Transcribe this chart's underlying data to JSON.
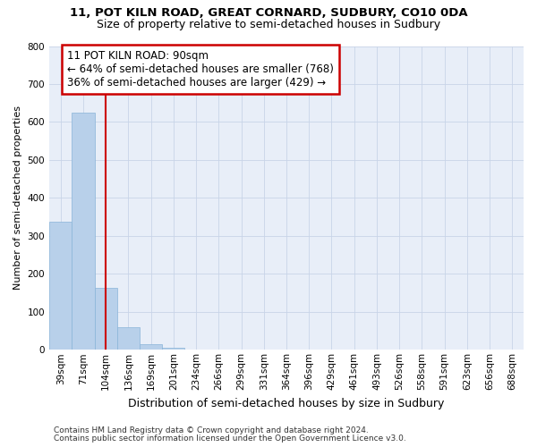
{
  "title": "11, POT KILN ROAD, GREAT CORNARD, SUDBURY, CO10 0DA",
  "subtitle": "Size of property relative to semi-detached houses in Sudbury",
  "xlabel": "Distribution of semi-detached houses by size in Sudbury",
  "ylabel": "Number of semi-detached properties",
  "categories": [
    "39sqm",
    "71sqm",
    "104sqm",
    "136sqm",
    "169sqm",
    "201sqm",
    "234sqm",
    "266sqm",
    "299sqm",
    "331sqm",
    "364sqm",
    "396sqm",
    "429sqm",
    "461sqm",
    "493sqm",
    "526sqm",
    "558sqm",
    "591sqm",
    "623sqm",
    "656sqm",
    "688sqm"
  ],
  "values": [
    338,
    625,
    163,
    60,
    14,
    6,
    0,
    0,
    0,
    0,
    0,
    0,
    0,
    0,
    0,
    0,
    0,
    0,
    0,
    0,
    0
  ],
  "bar_color": "#b8d0ea",
  "bar_edge_color": "#89b4d8",
  "property_line_x": 2.0,
  "annotation_line1": "11 POT KILN ROAD: 90sqm",
  "annotation_line2": "← 64% of semi-detached houses are smaller (768)",
  "annotation_line3": "36% of semi-detached houses are larger (429) →",
  "annotation_box_facecolor": "#ffffff",
  "annotation_box_edgecolor": "#cc0000",
  "vline_color": "#cc0000",
  "ylim": [
    0,
    800
  ],
  "yticks": [
    0,
    100,
    200,
    300,
    400,
    500,
    600,
    700,
    800
  ],
  "grid_color": "#c8d4e8",
  "background_color": "#e8eef8",
  "footnote1": "Contains HM Land Registry data © Crown copyright and database right 2024.",
  "footnote2": "Contains public sector information licensed under the Open Government Licence v3.0.",
  "title_fontsize": 9.5,
  "subtitle_fontsize": 9.0,
  "tick_fontsize": 7.5,
  "ylabel_fontsize": 8.0,
  "xlabel_fontsize": 9.0,
  "ann_fontsize": 8.5,
  "footnote_fontsize": 6.5
}
